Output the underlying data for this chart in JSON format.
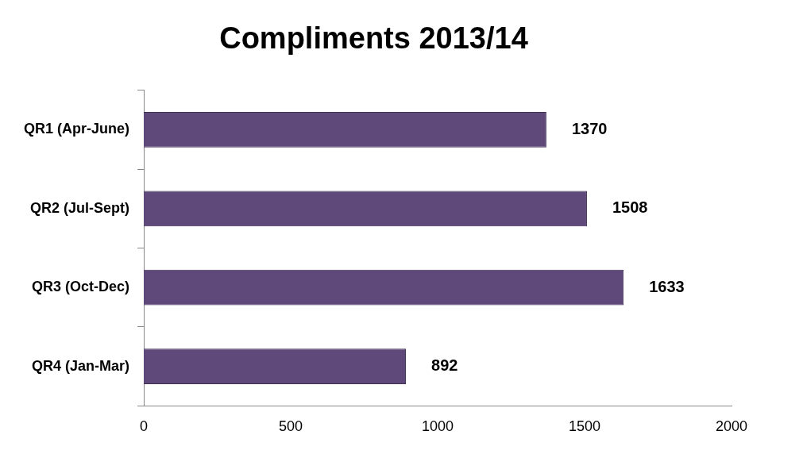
{
  "chart_data": {
    "type": "bar",
    "orientation": "horizontal",
    "title": "Compliments 2013/14",
    "categories": [
      "QR1 (Apr-June)",
      "QR2 (Jul-Sept)",
      "QR3 (Oct-Dec)",
      "QR4 (Jan-Mar)"
    ],
    "values": [
      1370,
      1508,
      1633,
      892
    ],
    "color": "#5f497a",
    "xlim": [
      0,
      2000
    ],
    "xticks": [
      0,
      500,
      1000,
      1500,
      2000
    ],
    "grid": false,
    "legend": false,
    "data_labels": true
  }
}
